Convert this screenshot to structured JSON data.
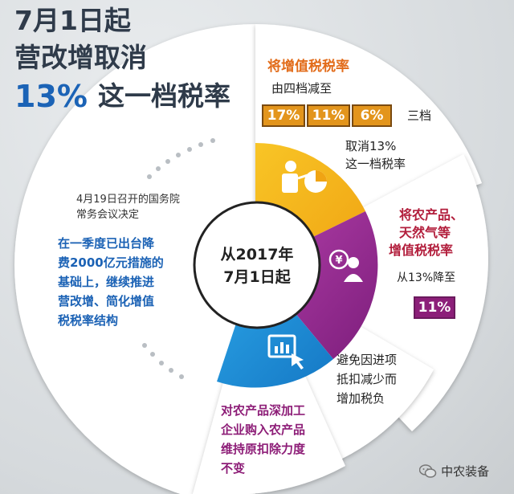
{
  "headline": {
    "line1": "7月1日起",
    "line2": "营改增取消",
    "line3_rate": "13%",
    "line3_rest": "这一档税率"
  },
  "center": {
    "line1": "从2017年",
    "line2": "7月1日起"
  },
  "left_panel": {
    "note_line1": "4月19日召开的国务院",
    "note_line2": "常务会议决定",
    "body_lines": [
      "在一季度已出台降",
      "费2000亿元措施的",
      "基础上，继续推进",
      "营改增、简化增值",
      "税税率结构"
    ]
  },
  "top_right": {
    "title": "将增值税税率",
    "subtitle": "由四档减至",
    "rates": [
      "17%",
      "11%",
      "6%"
    ],
    "rates_suffix": "三档",
    "cancel_line1": "取消13%",
    "cancel_line2": "这一档税率"
  },
  "right_panel": {
    "title_lines": [
      "将农产品、",
      "天然气等",
      "增值税税率"
    ],
    "from_text": "从13%降至",
    "new_rate": "11%"
  },
  "lower_right": {
    "lines": [
      "避免因进项",
      "抵扣减少而",
      "增加税负"
    ]
  },
  "bottom": {
    "lines": [
      "对农产品深加工",
      "企业购入农产品",
      "维持原扣除力度",
      "不变"
    ]
  },
  "logo": {
    "text": "中农装备"
  },
  "colors": {
    "orange": "#f4b81c",
    "purple": "#8e2b8c",
    "blue": "#1e8fd8",
    "white_ring": "#ffffff",
    "headline_orange": "#e0701e",
    "headline_blue": "#1b63b6"
  },
  "icons": [
    "presentation-icon",
    "yen-person-icon",
    "chart-touch-icon",
    "wechat-logo-icon"
  ]
}
